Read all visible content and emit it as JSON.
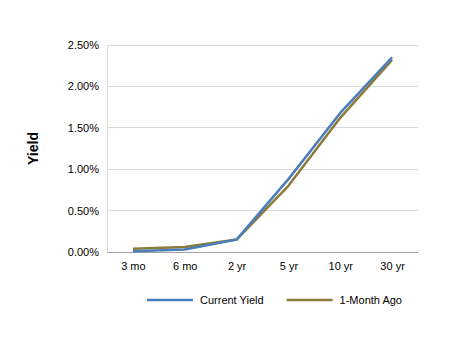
{
  "chart_data": {
    "type": "line",
    "y_label": "Yield",
    "categories": [
      "3 mo",
      "6 mo",
      "2 yr",
      "5 yr",
      "10 yr",
      "30 yr"
    ],
    "series": [
      {
        "name": "Current Yield",
        "color": "#4a7ebb",
        "values": [
          0.01,
          0.03,
          0.15,
          0.88,
          1.68,
          2.35
        ]
      },
      {
        "name": "1-Month Ago",
        "color": "#8c7b3a",
        "values": [
          0.04,
          0.06,
          0.15,
          0.8,
          1.62,
          2.32
        ]
      }
    ],
    "ylim": [
      0,
      2.5
    ],
    "yticks": [
      {
        "value": 0,
        "label": "0.00%"
      },
      {
        "value": 0.5,
        "label": "0.50%"
      },
      {
        "value": 1,
        "label": "1.00%"
      },
      {
        "value": 1.5,
        "label": "1.50%"
      },
      {
        "value": 2,
        "label": "2.00%"
      },
      {
        "value": 2.5,
        "label": "2.50%"
      }
    ],
    "grid": true,
    "legend": "bottom"
  }
}
